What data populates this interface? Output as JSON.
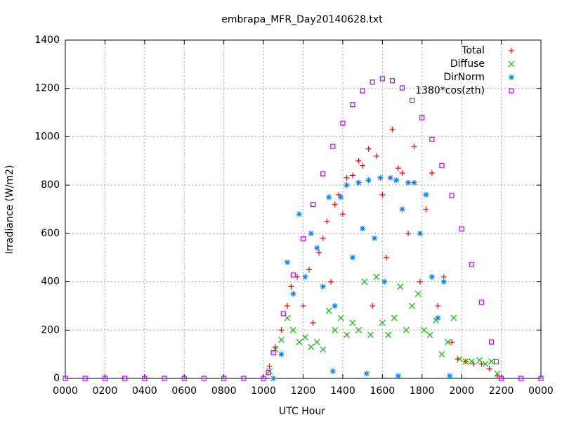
{
  "chart_data": {
    "type": "scatter",
    "title": "embrapa_MFR_Day20140628.txt",
    "x_label": "UTC Hour",
    "y_label": "Irradiance (W/m2)",
    "xlim": [
      0,
      24
    ],
    "ylim": [
      0,
      1400
    ],
    "xticks": [
      {
        "value": 0,
        "label": "0000"
      },
      {
        "value": 2,
        "label": "0200"
      },
      {
        "value": 4,
        "label": "0400"
      },
      {
        "value": 6,
        "label": "0600"
      },
      {
        "value": 8,
        "label": "0800"
      },
      {
        "value": 10,
        "label": "1000"
      },
      {
        "value": 12,
        "label": "1200"
      },
      {
        "value": 14,
        "label": "1400"
      },
      {
        "value": 16,
        "label": "1600"
      },
      {
        "value": 18,
        "label": "1800"
      },
      {
        "value": 20,
        "label": "2000"
      },
      {
        "value": 22,
        "label": "2200"
      },
      {
        "value": 24,
        "label": "0000"
      }
    ],
    "yticks": [
      0,
      200,
      400,
      600,
      800,
      1000,
      1200,
      1400
    ],
    "grid": true,
    "legend": "top-right",
    "series": [
      {
        "name": "Total",
        "color": "#ff0000",
        "marker": "plus",
        "x": [
          10.3,
          10.6,
          10.9,
          11.2,
          11.4,
          11.7,
          12.0,
          12.3,
          12.5,
          12.8,
          13.0,
          13.2,
          13.4,
          13.6,
          13.8,
          14.0,
          14.2,
          14.5,
          14.8,
          15.0,
          15.3,
          15.5,
          15.7,
          16.0,
          16.2,
          16.5,
          16.8,
          17.0,
          17.3,
          17.6,
          17.9,
          18.2,
          18.5,
          18.8,
          19.1,
          19.5,
          19.8,
          20.2,
          20.6,
          21.0,
          21.4,
          21.8
        ],
        "values": [
          50,
          130,
          200,
          300,
          380,
          420,
          300,
          450,
          230,
          520,
          580,
          650,
          400,
          720,
          760,
          680,
          830,
          840,
          900,
          880,
          950,
          300,
          920,
          760,
          500,
          1030,
          870,
          850,
          600,
          960,
          400,
          700,
          850,
          300,
          420,
          150,
          80,
          70,
          60,
          60,
          40,
          10
        ]
      },
      {
        "name": "Diffuse",
        "color": "#00c000",
        "marker": "cross",
        "x": [
          10.3,
          10.6,
          10.9,
          11.2,
          11.5,
          11.8,
          12.1,
          12.4,
          12.7,
          13.0,
          13.3,
          13.6,
          13.9,
          14.2,
          14.5,
          14.8,
          15.1,
          15.4,
          15.7,
          16.0,
          16.3,
          16.6,
          16.9,
          17.2,
          17.5,
          17.8,
          18.1,
          18.4,
          18.7,
          19.0,
          19.3,
          19.6,
          19.9,
          20.2,
          20.5,
          20.9,
          21.2,
          21.5,
          21.8
        ],
        "values": [
          30,
          120,
          160,
          250,
          200,
          150,
          170,
          130,
          150,
          120,
          280,
          200,
          250,
          180,
          230,
          200,
          400,
          180,
          420,
          230,
          180,
          250,
          380,
          200,
          300,
          350,
          200,
          180,
          240,
          100,
          150,
          250,
          80,
          70,
          70,
          75,
          60,
          70,
          20
        ]
      },
      {
        "name": "DirNorm",
        "color": "#0080ff",
        "marker": "star",
        "x": [
          10.5,
          10.9,
          11.2,
          11.5,
          11.8,
          12.1,
          12.4,
          12.7,
          13.0,
          13.3,
          13.5,
          13.6,
          13.9,
          14.2,
          14.5,
          14.8,
          15.0,
          15.2,
          15.3,
          15.6,
          15.9,
          16.1,
          16.4,
          16.7,
          16.8,
          17.0,
          17.3,
          17.6,
          17.9,
          18.2,
          18.5,
          18.8,
          19.1,
          19.4
        ],
        "values": [
          0,
          100,
          480,
          350,
          680,
          420,
          600,
          540,
          380,
          750,
          30,
          300,
          750,
          800,
          500,
          810,
          620,
          20,
          820,
          580,
          830,
          400,
          830,
          820,
          10,
          700,
          810,
          810,
          600,
          760,
          420,
          250,
          400,
          10
        ]
      },
      {
        "name": "1380*cos(zth)",
        "color": "#c000ff",
        "marker": "square",
        "x": [
          0,
          1,
          2,
          3,
          4,
          5,
          6,
          7,
          8,
          9,
          10,
          10.25,
          10.5,
          11,
          11.5,
          12,
          12.5,
          13,
          13.5,
          14,
          14.5,
          15,
          15.5,
          16,
          16.5,
          17,
          17.5,
          18,
          18.5,
          19,
          19.5,
          20,
          20.5,
          21,
          21.5,
          21.75,
          22,
          23,
          24
        ],
        "values": [
          0,
          0,
          0,
          0,
          0,
          0,
          0,
          0,
          0,
          0,
          0,
          24,
          106,
          268,
          428,
          578,
          720,
          847,
          960,
          1056,
          1133,
          1190,
          1226,
          1240,
          1232,
          1202,
          1151,
          1079,
          989,
          881,
          757,
          619,
          471,
          315,
          151,
          69,
          0,
          0,
          0
        ]
      }
    ]
  }
}
